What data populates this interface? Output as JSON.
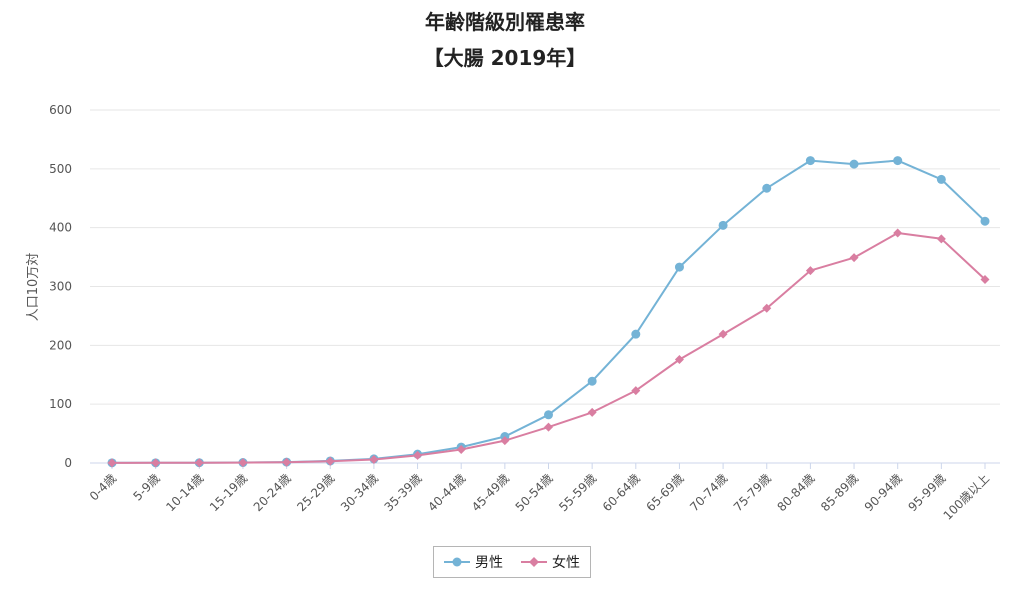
{
  "chart_data": {
    "type": "line",
    "title": "年齢階級別罹患率",
    "subtitle": "【大腸 2019年】",
    "xlabel": "",
    "ylabel": "人口10万対",
    "ylim": [
      0,
      600
    ],
    "yticks": [
      0,
      100,
      200,
      300,
      400,
      500,
      600
    ],
    "grid": true,
    "legend_position": "bottom",
    "categories": [
      "0-4歳",
      "5-9歳",
      "10-14歳",
      "15-19歳",
      "20-24歳",
      "25-29歳",
      "30-34歳",
      "35-39歳",
      "40-44歳",
      "45-49歳",
      "50-54歳",
      "55-59歳",
      "60-64歳",
      "65-69歳",
      "70-74歳",
      "75-79歳",
      "80-84歳",
      "85-89歳",
      "90-94歳",
      "95-99歳",
      "100歳以上"
    ],
    "series": [
      {
        "name": "男性",
        "color": "#74b3d6",
        "marker": "circle",
        "values": [
          0.3,
          0.3,
          0.5,
          0.8,
          1.5,
          3.5,
          7,
          15,
          27,
          45,
          82,
          139,
          219,
          333,
          404,
          467,
          514,
          508,
          514,
          482,
          411
        ]
      },
      {
        "name": "女性",
        "color": "#d97ea1",
        "marker": "diamond",
        "values": [
          0.2,
          0.3,
          0.4,
          0.7,
          1.3,
          3,
          6,
          13,
          23,
          38,
          61,
          86,
          123,
          176,
          219,
          263,
          327,
          349,
          391,
          381,
          312
        ]
      }
    ]
  }
}
